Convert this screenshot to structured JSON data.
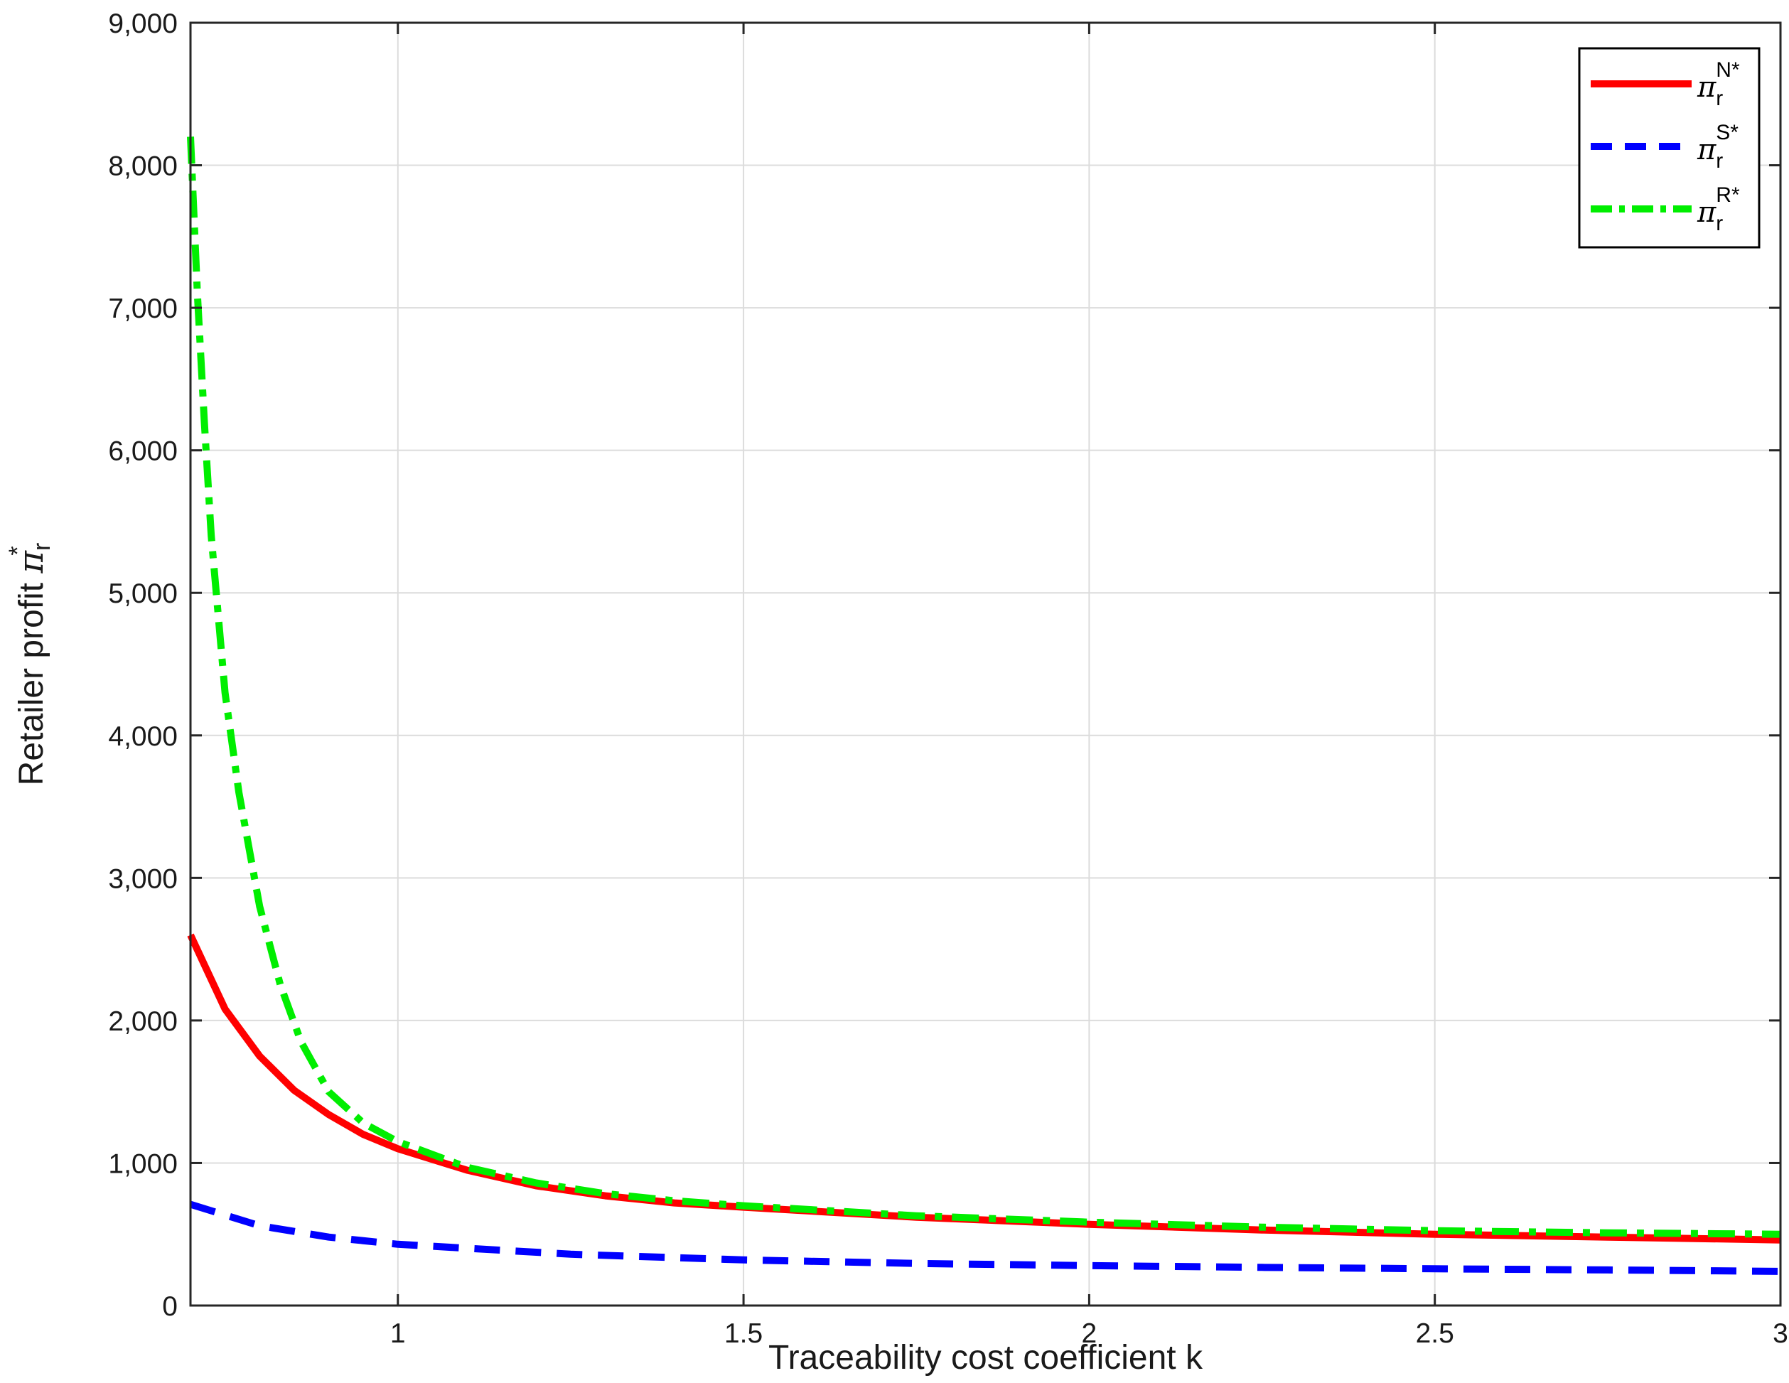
{
  "chart_data": {
    "type": "line",
    "xlabel": "Traceability cost coefficient k",
    "ylabel": {
      "main": "Retailer profit ",
      "symbol": "π",
      "sub": "r",
      "sup": "*"
    },
    "xlim": [
      0.7,
      3
    ],
    "ylim": [
      0,
      9000
    ],
    "xticks": [
      1,
      1.5,
      2,
      2.5,
      3
    ],
    "xtick_labels": [
      "1",
      "1.5",
      "2",
      "2.5",
      "3"
    ],
    "yticks": [
      0,
      1000,
      2000,
      3000,
      4000,
      5000,
      6000,
      7000,
      8000,
      9000
    ],
    "ytick_labels": [
      "0",
      "1,000",
      "2,000",
      "3,000",
      "4,000",
      "5,000",
      "6,000",
      "7,000",
      "8,000",
      "9,000"
    ],
    "grid": true,
    "legend_position": "top-right",
    "series": [
      {
        "name": "π_r^N*",
        "legend": {
          "symbol": "π",
          "sub": "r",
          "sup": "N*"
        },
        "color": "#ff0000",
        "style": "solid",
        "x": [
          0.7,
          0.75,
          0.8,
          0.85,
          0.9,
          0.95,
          1.0,
          1.1,
          1.2,
          1.3,
          1.4,
          1.5,
          1.75,
          2.0,
          2.25,
          2.5,
          2.75,
          3.0
        ],
        "y": [
          2600,
          2080,
          1750,
          1510,
          1340,
          1200,
          1100,
          950,
          840,
          770,
          720,
          690,
          620,
          570,
          530,
          500,
          480,
          460
        ]
      },
      {
        "name": "π_r^S*",
        "legend": {
          "symbol": "π",
          "sub": "r",
          "sup": "S*"
        },
        "color": "#0000ff",
        "style": "dashed",
        "x": [
          0.7,
          0.8,
          0.9,
          1.0,
          1.25,
          1.5,
          1.75,
          2.0,
          2.25,
          2.5,
          2.75,
          3.0
        ],
        "y": [
          710,
          560,
          480,
          430,
          360,
          320,
          295,
          280,
          268,
          258,
          250,
          240
        ]
      },
      {
        "name": "π_r^R*",
        "legend": {
          "symbol": "π",
          "sub": "r",
          "sup": "R*"
        },
        "color": "#00ee00",
        "style": "dashdot",
        "x": [
          0.7,
          0.71,
          0.72,
          0.73,
          0.75,
          0.77,
          0.8,
          0.83,
          0.86,
          0.9,
          0.95,
          1.0,
          1.1,
          1.2,
          1.3,
          1.4,
          1.5,
          1.75,
          2.0,
          2.25,
          2.5,
          2.75,
          3.0
        ],
        "y": [
          8200,
          7100,
          6200,
          5400,
          4300,
          3600,
          2800,
          2250,
          1850,
          1500,
          1280,
          1150,
          970,
          860,
          785,
          735,
          700,
          630,
          585,
          550,
          525,
          510,
          500
        ]
      }
    ]
  }
}
